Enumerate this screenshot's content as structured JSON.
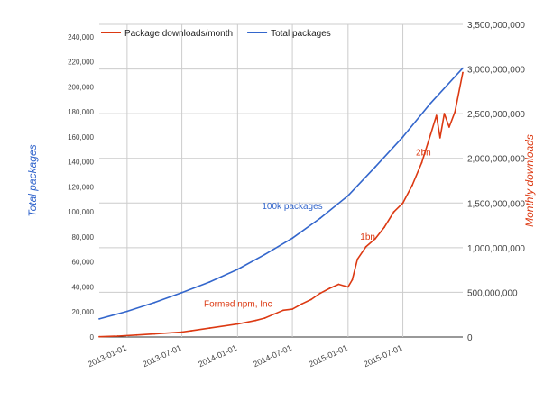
{
  "chart_data": {
    "type": "line",
    "title": "",
    "legend": {
      "placement": "top-left",
      "entries": [
        {
          "name": "Package downloads/month",
          "color": "#dc3912"
        },
        {
          "name": "Total packages",
          "color": "#3366cc"
        }
      ]
    },
    "x_axis": {
      "type": "date",
      "ticks": [
        "2013-01-01",
        "2013-07-01",
        "2014-01-01",
        "2014-07-01",
        "2015-01-01",
        "2015-07-01"
      ],
      "range": [
        "2012-10-01",
        "2016-01-15"
      ]
    },
    "y_left": {
      "label": "Total packages",
      "color": "#3366cc",
      "range": [
        0,
        250000
      ],
      "ticks": [
        {
          "value": 0,
          "label": "0"
        },
        {
          "value": 20000,
          "label": "20,000"
        },
        {
          "value": 40000,
          "label": "40,000"
        },
        {
          "value": 60000,
          "label": "60,000"
        },
        {
          "value": 80000,
          "label": "80,000"
        },
        {
          "value": 100000,
          "label": "100,000"
        },
        {
          "value": 120000,
          "label": "120,000"
        },
        {
          "value": 140000,
          "label": "140,000"
        },
        {
          "value": 160000,
          "label": "160,000"
        },
        {
          "value": 180000,
          "label": "180,000"
        },
        {
          "value": 200000,
          "label": "200,000"
        },
        {
          "value": 220000,
          "label": "220,000"
        },
        {
          "value": 240000,
          "label": "240,000"
        }
      ]
    },
    "y_right": {
      "label": "Monthly downloads",
      "color": "#dc3912",
      "range": [
        0,
        3500000000
      ],
      "ticks": [
        {
          "value": 0,
          "label": "0"
        },
        {
          "value": 500000000,
          "label": "500,000,000"
        },
        {
          "value": 1000000000,
          "label": "1,000,000,000"
        },
        {
          "value": 1500000000,
          "label": "1,500,000,000"
        },
        {
          "value": 2000000000,
          "label": "2,000,000,000"
        },
        {
          "value": 2500000000,
          "label": "2,500,000,000"
        },
        {
          "value": 3000000000,
          "label": "3,000,000,000"
        },
        {
          "value": 3500000000,
          "label": "3,500,000,000"
        }
      ]
    },
    "grid": true,
    "series": [
      {
        "name": "Total packages",
        "axis": "left",
        "color": "#3366cc",
        "points": [
          [
            "2012-10-01",
            14500
          ],
          [
            "2013-01-01",
            20500
          ],
          [
            "2013-04-01",
            27500
          ],
          [
            "2013-07-01",
            35500
          ],
          [
            "2013-10-01",
            44000
          ],
          [
            "2014-01-01",
            54000
          ],
          [
            "2014-04-01",
            66000
          ],
          [
            "2014-07-01",
            79000
          ],
          [
            "2014-10-01",
            95000
          ],
          [
            "2015-01-01",
            113000
          ],
          [
            "2015-04-01",
            136000
          ],
          [
            "2015-07-01",
            160000
          ],
          [
            "2015-10-01",
            187000
          ],
          [
            "2016-01-15",
            215000
          ]
        ]
      },
      {
        "name": "Package downloads/month",
        "axis": "right",
        "color": "#dc3912",
        "points": [
          [
            "2012-10-01",
            3000000
          ],
          [
            "2012-12-01",
            10000000
          ],
          [
            "2013-02-01",
            22000000
          ],
          [
            "2013-04-01",
            34000000
          ],
          [
            "2013-07-01",
            55000000
          ],
          [
            "2013-08-01",
            70000000
          ],
          [
            "2013-10-01",
            100000000
          ],
          [
            "2014-01-01",
            145000000
          ],
          [
            "2014-03-01",
            185000000
          ],
          [
            "2014-04-01",
            212000000
          ],
          [
            "2014-05-01",
            255000000
          ],
          [
            "2014-06-01",
            300000000
          ],
          [
            "2014-07-01",
            312000000
          ],
          [
            "2014-08-01",
            370000000
          ],
          [
            "2014-09-01",
            420000000
          ],
          [
            "2014-10-01",
            490000000
          ],
          [
            "2014-11-01",
            545000000
          ],
          [
            "2014-12-01",
            590000000
          ],
          [
            "2015-01-01",
            560000000
          ],
          [
            "2015-01-15",
            640000000
          ],
          [
            "2015-02-01",
            870000000
          ],
          [
            "2015-03-01",
            1010000000
          ],
          [
            "2015-04-01",
            1100000000
          ],
          [
            "2015-05-01",
            1230000000
          ],
          [
            "2015-06-01",
            1400000000
          ],
          [
            "2015-07-01",
            1500000000
          ],
          [
            "2015-08-01",
            1700000000
          ],
          [
            "2015-09-01",
            1950000000
          ],
          [
            "2015-10-01",
            2270000000
          ],
          [
            "2015-10-20",
            2480000000
          ],
          [
            "2015-11-01",
            2230000000
          ],
          [
            "2015-11-15",
            2500000000
          ],
          [
            "2015-12-01",
            2350000000
          ],
          [
            "2015-12-20",
            2520000000
          ],
          [
            "2016-01-15",
            2960000000
          ]
        ]
      }
    ],
    "annotations": [
      {
        "text": "Formed npm, Inc",
        "date": "2014-05-01",
        "value": 255000000,
        "axis": "right",
        "color": "#dc3912"
      },
      {
        "text": "100k packages",
        "date": "2014-10-15",
        "value": 100000,
        "axis": "left",
        "color": "#3366cc"
      },
      {
        "text": "1bn",
        "date": "2015-03-01",
        "value": 1010000000,
        "axis": "right",
        "color": "#dc3912"
      },
      {
        "text": "2bn",
        "date": "2015-09-01",
        "value": 1950000000,
        "axis": "right",
        "color": "#dc3912"
      }
    ]
  }
}
